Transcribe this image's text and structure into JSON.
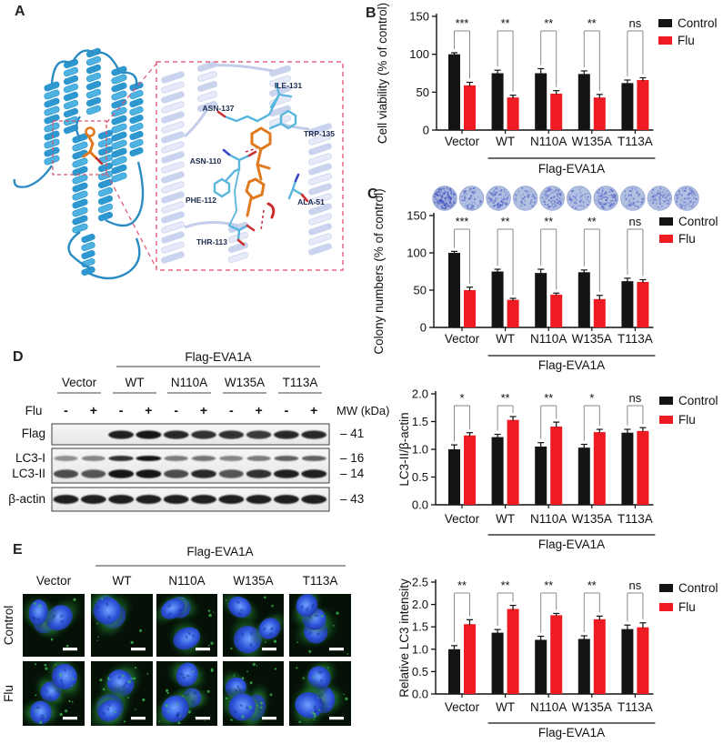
{
  "panel_labels": {
    "a": "A",
    "b": "B",
    "c": "C",
    "d": "D",
    "e": "E"
  },
  "panel_a": {
    "residues": [
      "ILE-131",
      "ASN-137",
      "TRP-135",
      "ASN-110",
      "PHE-112",
      "ALA-51",
      "THR-113"
    ]
  },
  "chart_data": [
    {
      "id": "B",
      "type": "bar",
      "title": "",
      "ylabel": "Cell viability (% of control)",
      "categories": [
        "Vector",
        "WT",
        "N110A",
        "W135A",
        "T113A"
      ],
      "group_label": "Flag-EVA1A",
      "ylim": [
        0,
        150
      ],
      "yticks": [
        0,
        50,
        100,
        150
      ],
      "series": [
        {
          "name": "Control",
          "color": "#141414",
          "values": [
            100,
            75,
            75,
            74,
            62
          ],
          "errors": [
            2,
            4,
            6,
            4,
            4
          ]
        },
        {
          "name": "Flu",
          "color": "#ee1b22",
          "values": [
            59,
            43,
            48,
            43,
            66
          ],
          "errors": [
            4,
            3,
            4,
            4,
            3
          ]
        }
      ],
      "significance": [
        "***",
        "**",
        "**",
        "**",
        "ns"
      ],
      "legend_position": "right",
      "grid": false
    },
    {
      "id": "C",
      "type": "bar",
      "title": "",
      "ylabel": "Colony numbers (% of control)",
      "categories": [
        "Vector",
        "WT",
        "N110A",
        "W135A",
        "T113A"
      ],
      "group_label": "Flag-EVA1A",
      "ylim": [
        0,
        150
      ],
      "yticks": [
        0,
        50,
        100,
        150
      ],
      "series": [
        {
          "name": "Control",
          "color": "#141414",
          "values": [
            100,
            75,
            73,
            74,
            62
          ],
          "errors": [
            2,
            3,
            5,
            3,
            4
          ]
        },
        {
          "name": "Flu",
          "color": "#ee1b22",
          "values": [
            50,
            37,
            44,
            38,
            61
          ],
          "errors": [
            4,
            2,
            2,
            5,
            3
          ]
        }
      ],
      "significance": [
        "***",
        "**",
        "**",
        "**",
        "ns"
      ],
      "legend_position": "right",
      "grid": false
    },
    {
      "id": "D",
      "type": "bar",
      "title": "",
      "ylabel": "LC3-II/β-actin",
      "categories": [
        "Vector",
        "WT",
        "N110A",
        "W135A",
        "T113A"
      ],
      "group_label": "Flag-EVA1A",
      "ylim": [
        0,
        2.0
      ],
      "yticks": [
        0,
        0.5,
        1.0,
        1.5,
        2.0
      ],
      "series": [
        {
          "name": "Control",
          "color": "#141414",
          "values": [
            1.0,
            1.22,
            1.05,
            1.03,
            1.3
          ],
          "errors": [
            0.08,
            0.05,
            0.07,
            0.06,
            0.06
          ]
        },
        {
          "name": "Flu",
          "color": "#ee1b22",
          "values": [
            1.25,
            1.53,
            1.41,
            1.31,
            1.33
          ],
          "errors": [
            0.05,
            0.06,
            0.08,
            0.05,
            0.06
          ]
        }
      ],
      "significance": [
        "*",
        "**",
        "**",
        "*",
        "ns"
      ],
      "legend_position": "right",
      "grid": false
    },
    {
      "id": "E",
      "type": "bar",
      "title": "",
      "ylabel": "Relative LC3 intensity",
      "categories": [
        "Vector",
        "WT",
        "N110A",
        "W135A",
        "T113A"
      ],
      "group_label": "Flag-EVA1A",
      "ylim": [
        0,
        2.5
      ],
      "yticks": [
        0,
        0.5,
        1.0,
        1.5,
        2.0,
        2.5
      ],
      "series": [
        {
          "name": "Control",
          "color": "#141414",
          "values": [
            1.0,
            1.37,
            1.21,
            1.23,
            1.45
          ],
          "errors": [
            0.08,
            0.07,
            0.08,
            0.07,
            0.09
          ]
        },
        {
          "name": "Flu",
          "color": "#ee1b22",
          "values": [
            1.56,
            1.9,
            1.76,
            1.67,
            1.49
          ],
          "errors": [
            0.1,
            0.08,
            0.04,
            0.07,
            0.1
          ]
        }
      ],
      "significance": [
        "**",
        "**",
        "**",
        "**",
        "ns"
      ],
      "legend_position": "right",
      "grid": false
    }
  ],
  "panel_d": {
    "header": "Flag-EVA1A",
    "groups": [
      "Vector",
      "WT",
      "N110A",
      "W135A",
      "T113A"
    ],
    "treatment_label": "Flu",
    "lane_signs": [
      "-",
      "+",
      "-",
      "+",
      "-",
      "+",
      "-",
      "+",
      "-",
      "+"
    ],
    "mw_header": "MW (kDa)",
    "rows": [
      {
        "label": "Flag",
        "mw": "41",
        "bands": [
          0,
          0,
          0.95,
          1,
          0.9,
          0.85,
          0.85,
          0.8,
          0.9,
          0.9
        ]
      },
      {
        "label": "LC3-I",
        "mw": "16",
        "bands": [
          0.35,
          0.4,
          0.85,
          1,
          0.45,
          0.5,
          0.4,
          0.45,
          0.6,
          0.6
        ]
      },
      {
        "label": "LC3-II",
        "mw": "14",
        "bands": [
          0.7,
          0.65,
          1,
          1,
          0.7,
          0.9,
          0.65,
          0.85,
          0.95,
          0.95
        ]
      },
      {
        "label": "β-actin",
        "mw": "43",
        "bands": [
          0.95,
          0.95,
          0.95,
          0.95,
          0.95,
          0.95,
          0.95,
          0.95,
          0.95,
          0.95
        ]
      }
    ]
  },
  "panel_e": {
    "header": "Flag-EVA1A",
    "columns": [
      "Vector",
      "WT",
      "N110A",
      "W135A",
      "T113A"
    ],
    "row_labels": [
      "Control",
      "Flu"
    ]
  },
  "colors": {
    "control_bar": "#141414",
    "flu_bar": "#ee1b22",
    "bracket": "#8a8a8a",
    "ribbon_blue": "#35a3d8",
    "ligand_orange": "#e07a1e",
    "inset_ribbon": "#dfe4f5",
    "inset_border": "#e4677d",
    "colony_fill": "#b2c0e2"
  }
}
